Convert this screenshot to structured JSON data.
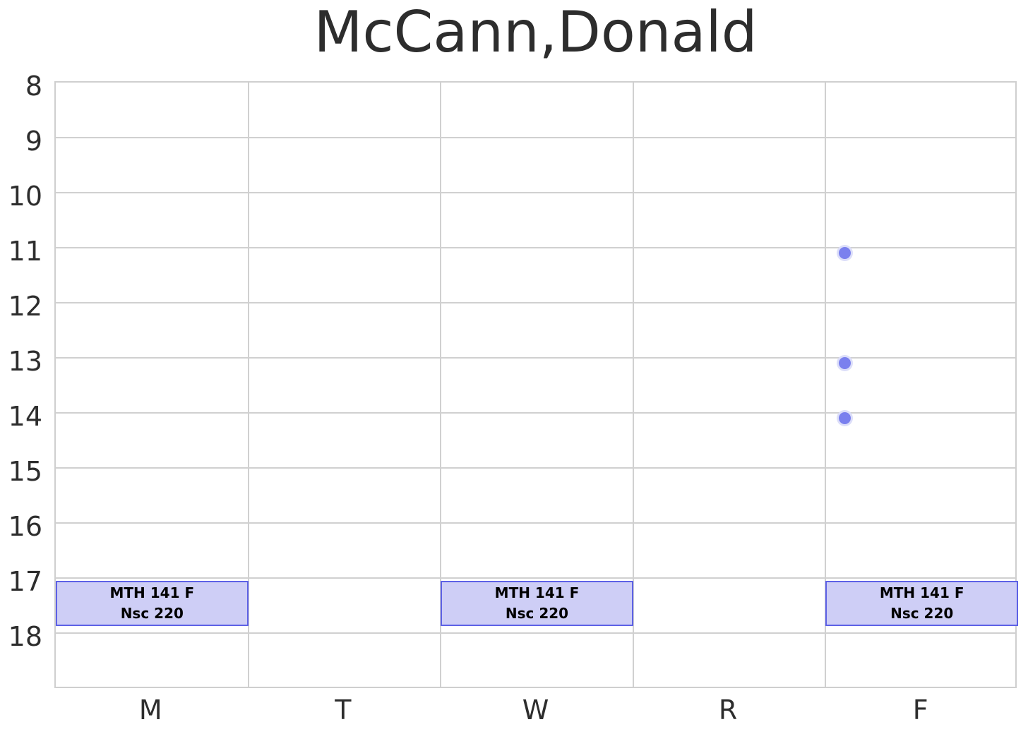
{
  "chart_data": {
    "type": "schedule",
    "title": "McCann,Donald",
    "x_categories": [
      "M",
      "T",
      "W",
      "R",
      "F"
    ],
    "y_ticks": [
      8,
      9,
      10,
      11,
      12,
      13,
      14,
      15,
      16,
      17,
      18
    ],
    "y_axis": {
      "top": 8,
      "bottom": 19.03,
      "unit": "hour-of-day"
    },
    "grid": true,
    "legend": false,
    "events": [
      {
        "day": "M",
        "start": 17.05,
        "end": 17.88,
        "label_line1": "MTH 141 F",
        "label_line2": "Nsc 220"
      },
      {
        "day": "W",
        "start": 17.05,
        "end": 17.88,
        "label_line1": "MTH 141 F",
        "label_line2": "Nsc 220"
      },
      {
        "day": "F",
        "start": 17.05,
        "end": 17.88,
        "label_line1": "MTH 141 F",
        "label_line2": "Nsc 220"
      }
    ],
    "points": [
      {
        "day": "F",
        "time": 11.1
      },
      {
        "day": "F",
        "time": 13.1
      },
      {
        "day": "F",
        "time": 14.1
      }
    ],
    "point_day_offset": 0.1,
    "colors": {
      "grid": "#d0d0d0",
      "spine": "#cfcfcf",
      "event_fill": "#cecef6",
      "event_border": "#5d61e6",
      "event_text": "#000000",
      "point_fill": "#7a80ee",
      "point_halo": "#dcdef9",
      "text": "#2d2d2d"
    }
  }
}
